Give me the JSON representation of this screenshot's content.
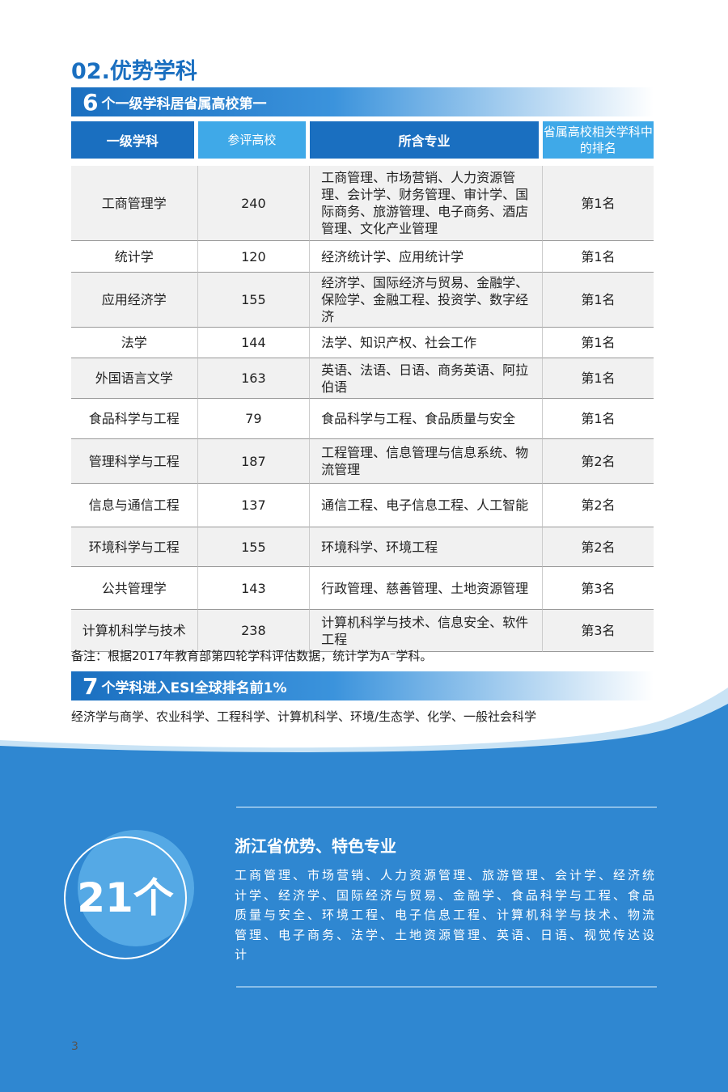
{
  "section_title": "02.优势学科",
  "banner1": {
    "number": "6",
    "text": "个一级学科居省属高校第一"
  },
  "table": {
    "headers": [
      "一级学科",
      "参评高校",
      "所含专业",
      "省属高校相关学科中的排名"
    ],
    "rows": [
      [
        "工商管理学",
        240,
        "工商管理、市场营销、人力资源管理、会计学、财务管理、审计学、国际商务、旅游管理、电子商务、酒店管理、文化产业管理",
        "第1名"
      ],
      [
        "统计学",
        120,
        "经济统计学、应用统计学",
        "第1名"
      ],
      [
        "应用经济学",
        155,
        "经济学、国际经济与贸易、金融学、保险学、金融工程、投资学、数字经济",
        "第1名"
      ],
      [
        "法学",
        144,
        "法学、知识产权、社会工作",
        "第1名"
      ],
      [
        "外国语言文学",
        163,
        "英语、法语、日语、商务英语、阿拉伯语",
        "第1名"
      ],
      [
        "食品科学与工程",
        79,
        "食品科学与工程、食品质量与安全",
        "第1名"
      ],
      [
        "管理科学与工程",
        187,
        "工程管理、信息管理与信息系统、物流管理",
        "第2名"
      ],
      [
        "信息与通信工程",
        137,
        "通信工程、电子信息工程、人工智能",
        "第2名"
      ],
      [
        "环境科学与工程",
        155,
        "环境科学、环境工程",
        "第2名"
      ],
      [
        "公共管理学",
        143,
        "行政管理、慈善管理、土地资源管理",
        "第3名"
      ],
      [
        "计算机科学与技术",
        238,
        "计算机科学与技术、信息安全、软件工程",
        "第3名"
      ]
    ]
  },
  "note": "备注：根据2017年教育部第四轮学科评估数据，统计学为A⁻学科。",
  "banner2": {
    "number": "7",
    "text": "个学科进入ESI全球排名前1%"
  },
  "esi_list": "经济学与商学、农业科学、工程科学、计算机科学、环境/生态学、化学、一般社会科学",
  "feature": {
    "count": "21个",
    "title": "浙江省优势、特色专业",
    "text": "工商管理、市场营销、人力资源管理、旅游管理、会计学、经济统计学、经济学、国际经济与贸易、金融学、食品科学与工程、食品质量与安全、环境工程、电子信息工程、计算机科学与技术、物流管理、电子商务、法学、土地资源管理、英语、日语、视觉传达设计"
  },
  "page_number": "3"
}
